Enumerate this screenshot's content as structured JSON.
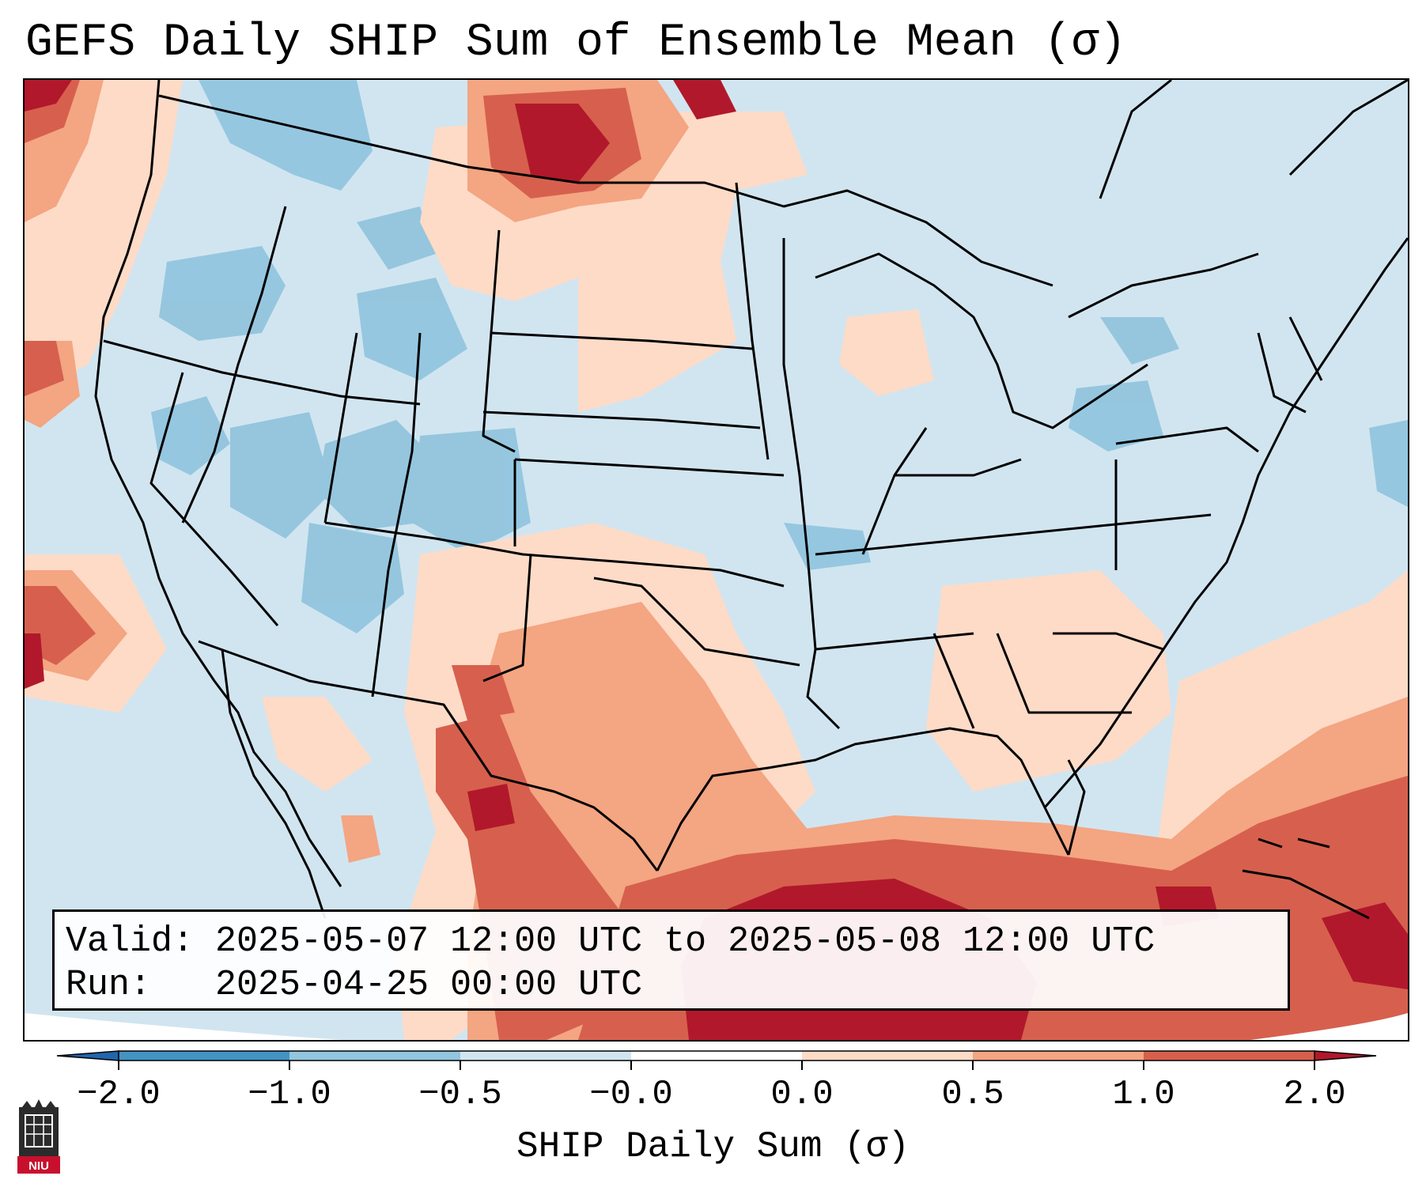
{
  "title": "GEFS Daily SHIP Sum of Ensemble Mean (σ)",
  "info": {
    "valid_line": "Valid: 2025-05-07 12:00 UTC to 2025-05-08 12:00 UTC",
    "run_line": "Run:   2025-04-25 00:00 UTC"
  },
  "colorbar": {
    "label": "SHIP Daily Sum (σ)",
    "ticks": [
      "−2.0",
      "−1.0",
      "−0.5",
      "−0.0",
      "0.0",
      "0.5",
      "1.0",
      "2.0"
    ],
    "colors": [
      "#4393c3",
      "#92c5de",
      "#d1e5f0",
      "#ffffff",
      "#fddbc7",
      "#f4a582",
      "#d6604d"
    ],
    "under_color": "#2166ac",
    "over_color": "#b2182b"
  },
  "logo": {
    "text": "NIU",
    "icon": "niu-logo-icon"
  },
  "map": {
    "projection": "lambert-conformal",
    "region": "contiguous-united-states",
    "background_color": "#d1e5f0"
  }
}
